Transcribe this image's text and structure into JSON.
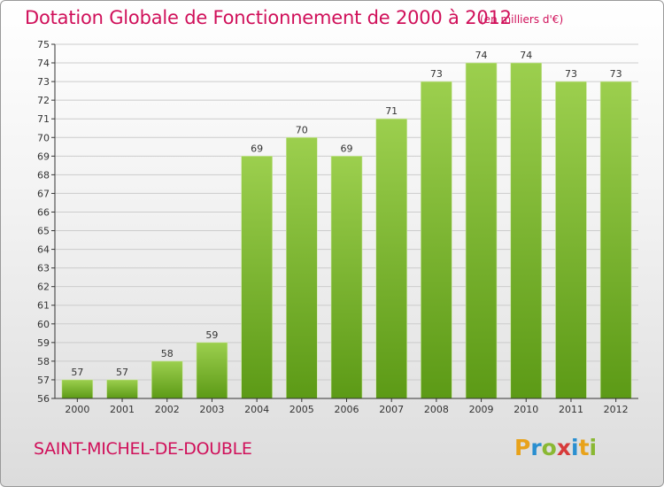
{
  "title": "Dotation Globale de Fonctionnement de 2000 à 2012",
  "subtitle": "(en milliers d'€)",
  "commune": "SAINT-MICHEL-DE-DOUBLE",
  "logo": {
    "text": "Proxiti",
    "letters": [
      "P",
      "r",
      "o",
      "x",
      "i",
      "t",
      "i"
    ]
  },
  "colors": {
    "title": "#d0105a",
    "bar_top": "#9ccf4e",
    "bar_bottom": "#5c9a16",
    "grid": "#cccccc",
    "axis": "#333333"
  },
  "chart_data": {
    "type": "bar",
    "categories": [
      "2000",
      "2001",
      "2002",
      "2003",
      "2004",
      "2005",
      "2006",
      "2007",
      "2008",
      "2009",
      "2010",
      "2011",
      "2012"
    ],
    "values": [
      57,
      57,
      58,
      59,
      69,
      70,
      69,
      71,
      73,
      74,
      74,
      73,
      73
    ],
    "data_labels": [
      "57",
      "57",
      "58",
      "59",
      "69",
      "70",
      "69",
      "71",
      "73",
      "74",
      "74",
      "73",
      "73"
    ],
    "ylim": [
      56,
      75
    ],
    "yticks": [
      56,
      57,
      58,
      59,
      60,
      61,
      62,
      63,
      64,
      65,
      66,
      67,
      68,
      69,
      70,
      71,
      72,
      73,
      74,
      75
    ],
    "grid": true,
    "xlabel": "",
    "ylabel": ""
  }
}
